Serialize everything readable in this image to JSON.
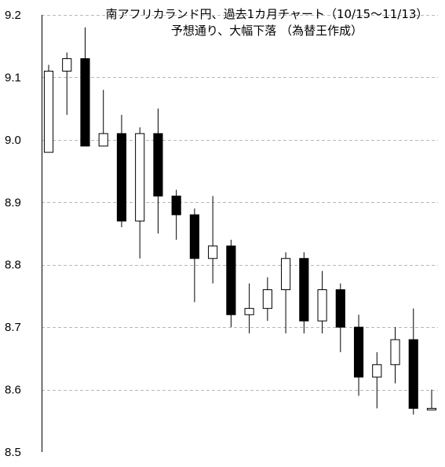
{
  "chart_data": {
    "type": "candlestick",
    "title_line1": "南アフリカランド円、過去1カ月チャート（10/15～11/13）",
    "title_line2": "予想通り、大幅下落 （為替王作成）",
    "ylim": [
      8.5,
      9.2
    ],
    "yticks": [
      "8.5",
      "8.6",
      "8.7",
      "8.8",
      "8.9",
      "9.0",
      "9.1",
      "9.2"
    ],
    "grid": true,
    "candles": [
      {
        "open": 8.98,
        "high": 9.12,
        "low": 8.98,
        "close": 9.11
      },
      {
        "open": 9.11,
        "high": 9.14,
        "low": 9.04,
        "close": 9.13
      },
      {
        "open": 9.13,
        "high": 9.18,
        "low": 8.99,
        "close": 8.99
      },
      {
        "open": 8.99,
        "high": 9.08,
        "low": 8.99,
        "close": 9.01
      },
      {
        "open": 9.01,
        "high": 9.04,
        "low": 8.86,
        "close": 8.87
      },
      {
        "open": 8.87,
        "high": 9.02,
        "low": 8.81,
        "close": 9.01
      },
      {
        "open": 9.01,
        "high": 9.05,
        "low": 8.85,
        "close": 8.91
      },
      {
        "open": 8.91,
        "high": 8.92,
        "low": 8.84,
        "close": 8.88
      },
      {
        "open": 8.88,
        "high": 8.89,
        "low": 8.74,
        "close": 8.81
      },
      {
        "open": 8.81,
        "high": 8.91,
        "low": 8.77,
        "close": 8.83
      },
      {
        "open": 8.83,
        "high": 8.84,
        "low": 8.7,
        "close": 8.72
      },
      {
        "open": 8.72,
        "high": 8.77,
        "low": 8.69,
        "close": 8.73
      },
      {
        "open": 8.73,
        "high": 8.78,
        "low": 8.71,
        "close": 8.76
      },
      {
        "open": 8.76,
        "high": 8.82,
        "low": 8.69,
        "close": 8.81
      },
      {
        "open": 8.81,
        "high": 8.82,
        "low": 8.69,
        "close": 8.71
      },
      {
        "open": 8.71,
        "high": 8.79,
        "low": 8.69,
        "close": 8.76
      },
      {
        "open": 8.76,
        "high": 8.77,
        "low": 8.66,
        "close": 8.7
      },
      {
        "open": 8.7,
        "high": 8.72,
        "low": 8.59,
        "close": 8.62
      },
      {
        "open": 8.62,
        "high": 8.66,
        "low": 8.57,
        "close": 8.64
      },
      {
        "open": 8.64,
        "high": 8.7,
        "low": 8.61,
        "close": 8.68
      },
      {
        "open": 8.68,
        "high": 8.73,
        "low": 8.56,
        "close": 8.57
      },
      {
        "open": 8.57,
        "high": 8.6,
        "low": 8.57,
        "close": 8.57
      }
    ],
    "colors": {
      "up_fill": "#ffffff",
      "down_fill": "#000000",
      "stroke": "#000000",
      "grid": "#b8b8b8"
    }
  }
}
